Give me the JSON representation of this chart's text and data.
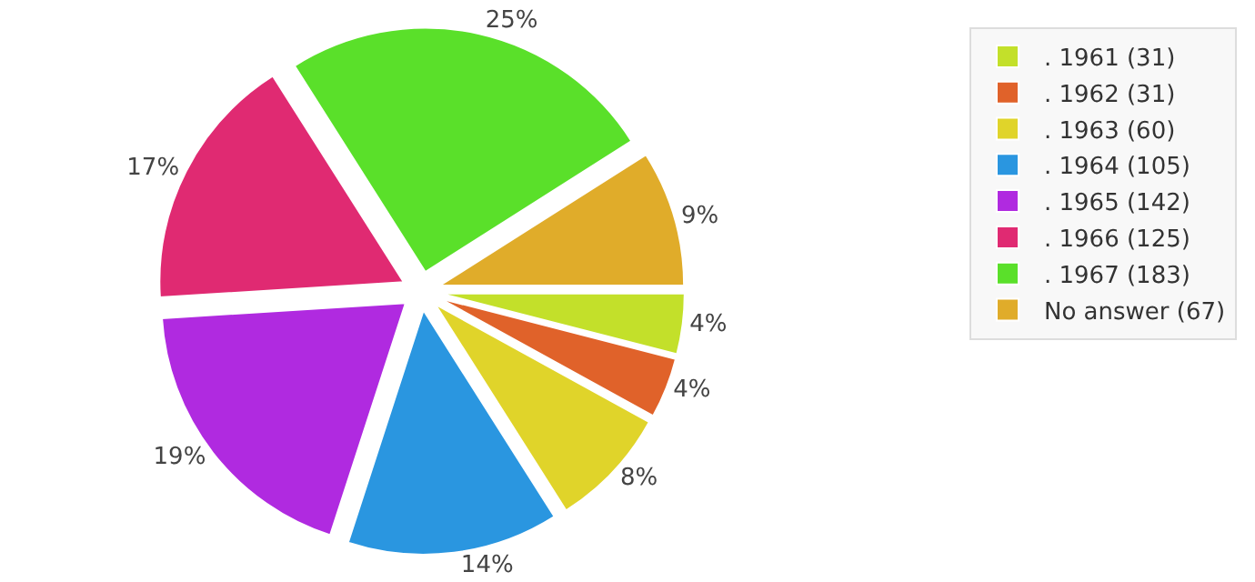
{
  "chart_data": {
    "type": "pie",
    "categories": [
      ". 1961 (31)",
      ". 1962 (31)",
      ". 1963 (60)",
      ". 1964 (105)",
      ". 1965 (142)",
      ". 1966 (125)",
      ". 1967 (183)",
      "No answer (67)"
    ],
    "values": [
      4,
      4,
      8,
      14,
      19,
      17,
      25,
      9
    ],
    "colors": [
      "#c3e02a",
      "#e0622a",
      "#e0d42a",
      "#2a96e0",
      "#b02ae0",
      "#e02a72",
      "#5ae02a",
      "#e0ac2a"
    ],
    "value_labels": [
      "4%",
      "4%",
      "8%",
      "14%",
      "19%",
      "17%",
      "25%",
      "9%"
    ],
    "legend": "top right"
  }
}
